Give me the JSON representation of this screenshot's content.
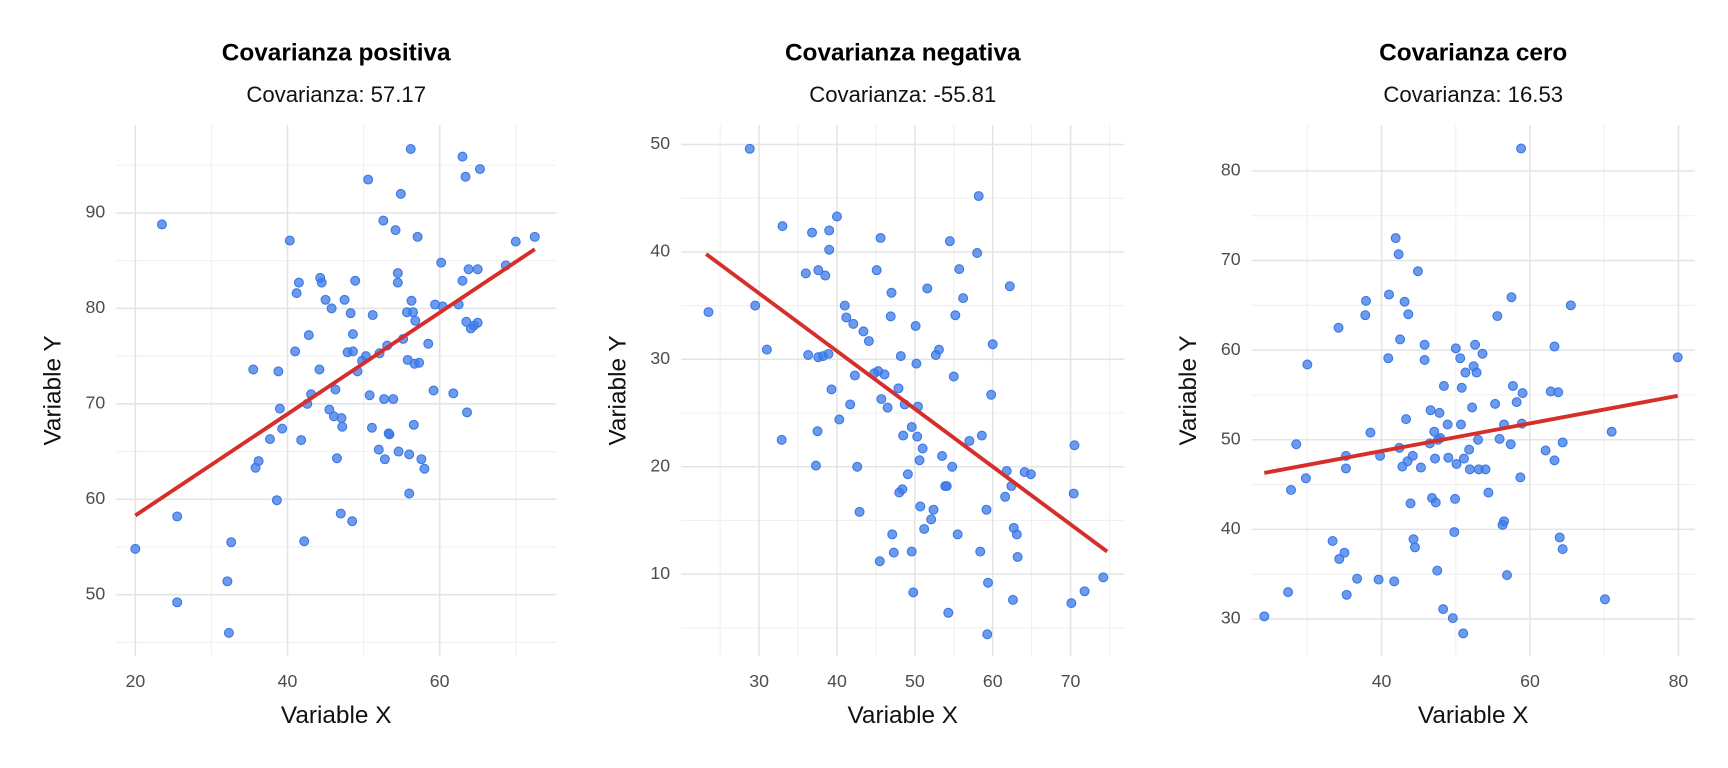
{
  "chart_data": [
    {
      "type": "scatter",
      "title": "Covarianza positiva",
      "subtitle": "Covarianza: 57.17",
      "x_label": "Variable X",
      "y_label": "Variable Y",
      "xlim": [
        17.5,
        75.3
      ],
      "ylim": [
        43.6,
        99.2
      ],
      "xticks": [
        20,
        40,
        60
      ],
      "yticks": [
        50,
        60,
        70,
        80,
        90
      ],
      "minor_xticks": [
        30,
        50,
        70
      ],
      "minor_yticks": [
        45,
        55,
        65,
        75,
        85,
        95
      ],
      "grid": true,
      "color": "#3b78e7",
      "x": [
        20,
        23.5,
        25.5,
        25.5,
        32.1,
        32.3,
        32.6,
        35.5,
        35.8,
        36.2,
        37.7,
        38.6,
        39,
        38.8,
        39.3,
        40.3,
        41,
        41.2,
        41.5,
        41.8,
        42.2,
        42.6,
        42.8,
        43.1,
        44.2,
        44.3,
        44.5,
        45,
        45.5,
        45.8,
        46.1,
        46.3,
        46.5,
        47,
        47.1,
        47.2,
        47.5,
        47.9,
        48.3,
        48.5,
        48.6,
        48.6,
        48.9,
        49.2,
        49.8,
        50.3,
        50.6,
        50.8,
        51.1,
        51.2,
        52,
        52.1,
        52.6,
        52.7,
        52.8,
        53.1,
        53.3,
        53.4,
        53.9,
        54.2,
        54.5,
        54.5,
        54.6,
        54.9,
        55.2,
        55.7,
        55.8,
        56,
        56,
        56.2,
        56.3,
        56.5,
        56.6,
        56.7,
        56.8,
        57.1,
        57.3,
        57.6,
        58,
        58.5,
        59.2,
        59.4,
        60.2,
        60.4,
        61.8,
        62.5,
        63,
        63,
        63.4,
        63.5,
        63.6,
        63.8,
        64.1,
        64.5,
        65,
        65.3,
        65,
        68.7,
        70,
        72.5
      ],
      "values": [
        54.8,
        88.8,
        58.2,
        49.2,
        51.4,
        46,
        55.5,
        73.6,
        63.3,
        64,
        66.3,
        59.9,
        69.5,
        73.4,
        67.4,
        87.1,
        75.5,
        81.6,
        82.7,
        66.2,
        55.6,
        70,
        77.2,
        71,
        73.6,
        83.2,
        82.7,
        80.9,
        69.4,
        80,
        68.7,
        71.5,
        64.3,
        58.5,
        68.5,
        67.6,
        80.9,
        75.4,
        79.5,
        57.7,
        77.3,
        75.5,
        82.9,
        73.4,
        74.5,
        75,
        93.5,
        70.9,
        67.5,
        79.3,
        65.2,
        75.3,
        89.2,
        70.5,
        64.2,
        76.1,
        66.9,
        66.8,
        70.5,
        88.2,
        83.7,
        82.7,
        65,
        92,
        76.8,
        79.6,
        74.6,
        64.7,
        60.6,
        96.7,
        80.8,
        79.6,
        67.8,
        74.2,
        78.7,
        87.5,
        74.3,
        64.2,
        63.2,
        76.3,
        71.4,
        80.4,
        84.8,
        80.2,
        71.1,
        80.4,
        82.9,
        95.9,
        93.8,
        78.6,
        69.1,
        84.1,
        77.9,
        78.2,
        84.1,
        94.6,
        78.5,
        84.5,
        87,
        87.5
      ],
      "trend": {
        "color": "#d62f2b",
        "x": [
          20,
          72.5
        ],
        "values": [
          58.3,
          86.2
        ]
      }
    },
    {
      "type": "scatter",
      "title": "Covarianza negativa",
      "subtitle": "Covarianza: -55.81",
      "x_label": "Variable X",
      "y_label": "Variable Y",
      "xlim": [
        20,
        76.9
      ],
      "ylim": [
        2.4,
        51.8
      ],
      "xticks": [
        30,
        40,
        50,
        60,
        70
      ],
      "yticks": [
        10,
        20,
        30,
        40,
        50
      ],
      "minor_xticks": [
        25,
        35,
        45,
        55,
        65,
        75
      ],
      "minor_yticks": [
        5,
        15,
        25,
        35,
        45
      ],
      "grid": true,
      "color": "#3b78e7",
      "x": [
        23.5,
        28.8,
        29.5,
        31,
        32.9,
        33,
        36,
        36.3,
        36.8,
        37.3,
        37.5,
        37.6,
        37.6,
        38.2,
        38.5,
        38.9,
        39,
        39,
        39.3,
        40,
        40.3,
        41,
        41.2,
        41.7,
        42.1,
        42.3,
        42.6,
        42.9,
        43.4,
        44.1,
        44.8,
        45.1,
        45.3,
        45.5,
        45.6,
        45.7,
        46.1,
        46.5,
        46.9,
        47,
        47.1,
        47.3,
        47.9,
        48,
        48.2,
        48.4,
        48.5,
        48.7,
        49.1,
        49.6,
        49.6,
        49.8,
        50.1,
        50.2,
        50.3,
        50.4,
        50.6,
        50.7,
        51,
        51.2,
        51.6,
        52.1,
        52.4,
        52.7,
        53.1,
        53.5,
        53.9,
        54.1,
        54.3,
        54.5,
        54.8,
        55,
        55.2,
        55.5,
        55.7,
        56.2,
        57,
        58,
        58.2,
        58.4,
        58.6,
        59.2,
        59.4,
        59.8,
        60,
        61.6,
        61.8,
        62.2,
        62.4,
        62.6,
        62.7,
        63.1,
        63.2,
        64.1,
        64.9,
        70.1,
        70.4,
        70.5,
        71.8,
        59.3,
        74.2
      ],
      "values": [
        34.4,
        49.6,
        35,
        30.9,
        22.5,
        42.4,
        38,
        30.4,
        41.8,
        20.1,
        23.3,
        30.2,
        38.3,
        30.3,
        37.8,
        30.5,
        42,
        40.2,
        27.2,
        43.3,
        24.4,
        35,
        33.9,
        25.8,
        33.3,
        28.5,
        20,
        15.8,
        32.6,
        31.7,
        28.7,
        38.3,
        28.9,
        11.2,
        41.3,
        26.3,
        28.6,
        25.5,
        34,
        36.2,
        13.7,
        12,
        27.3,
        17.6,
        30.3,
        17.9,
        22.9,
        25.8,
        19.3,
        23.7,
        12.1,
        8.3,
        33.1,
        29.6,
        22.8,
        25.6,
        20.6,
        16.3,
        21.7,
        14.2,
        36.6,
        15.1,
        16,
        30.4,
        30.9,
        21,
        18.2,
        18.2,
        6.4,
        41,
        20,
        28.4,
        34.1,
        13.7,
        38.4,
        35.7,
        22.4,
        39.9,
        45.2,
        12.1,
        22.9,
        16,
        9.2,
        26.7,
        31.4,
        17.2,
        19.6,
        36.8,
        18.2,
        7.6,
        14.3,
        13.7,
        11.6,
        19.5,
        19.3,
        7.3,
        17.5,
        22,
        8.4,
        4.4,
        9.7
      ],
      "trend": {
        "color": "#d62f2b",
        "x": [
          23.2,
          74.7
        ],
        "values": [
          39.8,
          12.1
        ]
      }
    },
    {
      "type": "scatter",
      "title": "Covarianza cero",
      "subtitle": "Covarianza: 16.53",
      "x_label": "Variable X",
      "y_label": "Variable Y",
      "xlim": [
        22.5,
        82.2
      ],
      "ylim": [
        25.9,
        85.1
      ],
      "xticks": [
        40,
        60,
        80
      ],
      "yticks": [
        30,
        40,
        50,
        60,
        70,
        80
      ],
      "minor_xticks": [
        30,
        50,
        70
      ],
      "minor_yticks": [
        35,
        45,
        55,
        65,
        75
      ],
      "grid": true,
      "color": "#3b78e7",
      "x": [
        24.2,
        27.4,
        27.8,
        28.5,
        29.8,
        30,
        33.4,
        34.2,
        34.3,
        35,
        35.2,
        35.2,
        35.3,
        36.7,
        37.8,
        37.9,
        38.5,
        39.6,
        39.8,
        40.9,
        41,
        41.7,
        41.9,
        42.3,
        42.4,
        42.5,
        42.8,
        43.1,
        43.3,
        43.5,
        43.6,
        43.9,
        44.2,
        44.3,
        44.5,
        44.9,
        45.3,
        45.8,
        45.8,
        46.5,
        46.6,
        46.8,
        47.1,
        47.3,
        47.2,
        47.5,
        47.6,
        47.8,
        47.9,
        48.3,
        48.4,
        48.9,
        49,
        49.6,
        49.8,
        49.9,
        50,
        50.1,
        50.6,
        50.7,
        50.8,
        51,
        51.1,
        51.3,
        51.8,
        51.9,
        52.2,
        52.4,
        52.6,
        52.8,
        53,
        53.1,
        53.6,
        54,
        54.4,
        55.3,
        55.6,
        55.9,
        56.3,
        56.5,
        56.5,
        56.9,
        57.4,
        57.5,
        57.7,
        58.2,
        58.8,
        58.7,
        58.9,
        59,
        62.1,
        62.8,
        63.3,
        63.3,
        63.8,
        64,
        64.4,
        64.4,
        65.5,
        70.1,
        71,
        79.9
      ],
      "values": [
        30.3,
        33,
        44.4,
        49.5,
        45.7,
        58.4,
        38.7,
        62.5,
        36.7,
        37.4,
        48.2,
        46.8,
        32.7,
        34.5,
        63.9,
        65.5,
        50.8,
        34.4,
        48.2,
        59.1,
        66.2,
        34.2,
        72.5,
        70.7,
        49.1,
        61.2,
        47,
        65.4,
        52.3,
        47.6,
        64,
        42.9,
        48.2,
        38.9,
        38,
        68.8,
        46.9,
        58.9,
        60.6,
        49.6,
        53.3,
        43.5,
        50.9,
        43,
        47.9,
        35.4,
        50,
        53,
        50.2,
        31.1,
        56,
        51.7,
        48,
        30.1,
        39.7,
        43.4,
        60.2,
        47.3,
        59.1,
        51.7,
        55.8,
        28.4,
        47.9,
        57.5,
        48.9,
        46.7,
        53.6,
        58.2,
        60.6,
        57.5,
        50,
        46.7,
        59.6,
        46.7,
        44.1,
        54,
        63.8,
        50.1,
        40.5,
        51.7,
        40.9,
        34.9,
        49.5,
        65.9,
        56,
        54.2,
        82.5,
        45.8,
        51.8,
        55.2,
        48.8,
        55.4,
        60.4,
        47.7,
        55.3,
        39.1,
        37.8,
        49.7,
        65,
        32.2,
        50.9,
        59.2
      ],
      "trend": {
        "color": "#d62f2b",
        "x": [
          24.2,
          79.9
        ],
        "values": [
          46.3,
          54.9
        ]
      }
    }
  ]
}
